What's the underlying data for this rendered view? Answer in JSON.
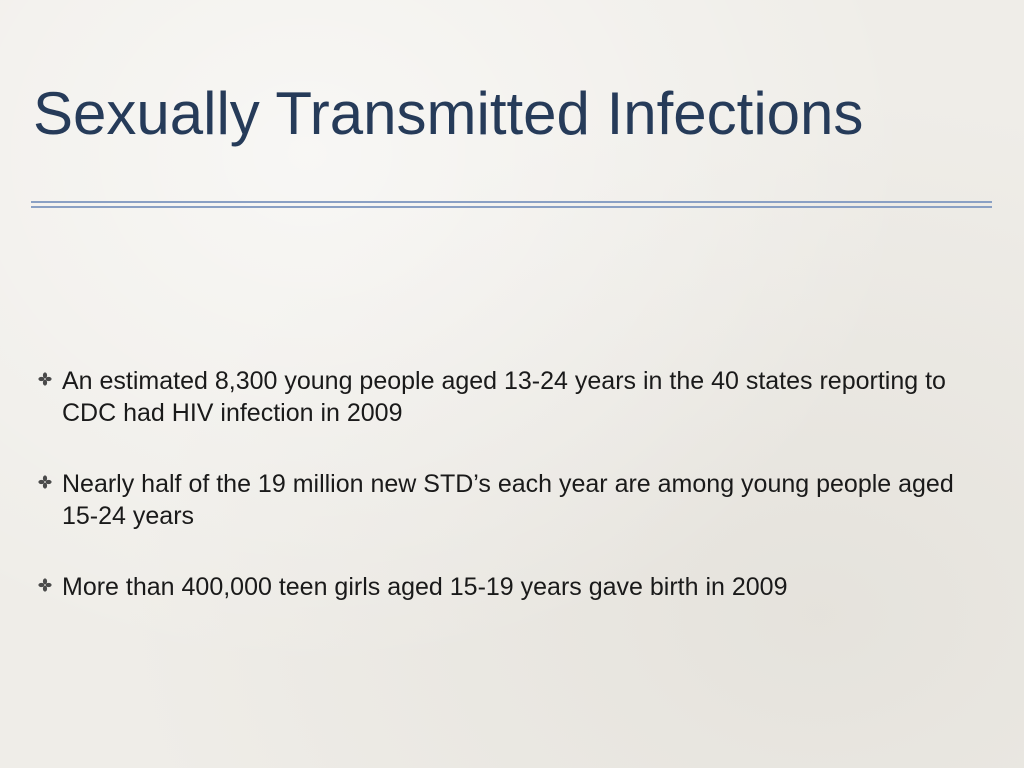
{
  "slide": {
    "title": "Sexually Transmitted Infections",
    "bullet_icon": "four-petal-flower-icon",
    "bullets": [
      {
        "text": "An estimated 8,300 young people aged 13-24 years in the 40 states reporting to CDC had HIV infection in 2009"
      },
      {
        "text": "Nearly half of the 19 million new STD’s each year are among young people aged 15-24 years"
      },
      {
        "text": "More than 400,000 teen girls aged 15-19 years gave birth in 2009"
      }
    ]
  },
  "colors": {
    "title": "#263b59",
    "rule": "#8aa0c4",
    "body_text": "#1a1a1a",
    "background": "#efede8"
  }
}
